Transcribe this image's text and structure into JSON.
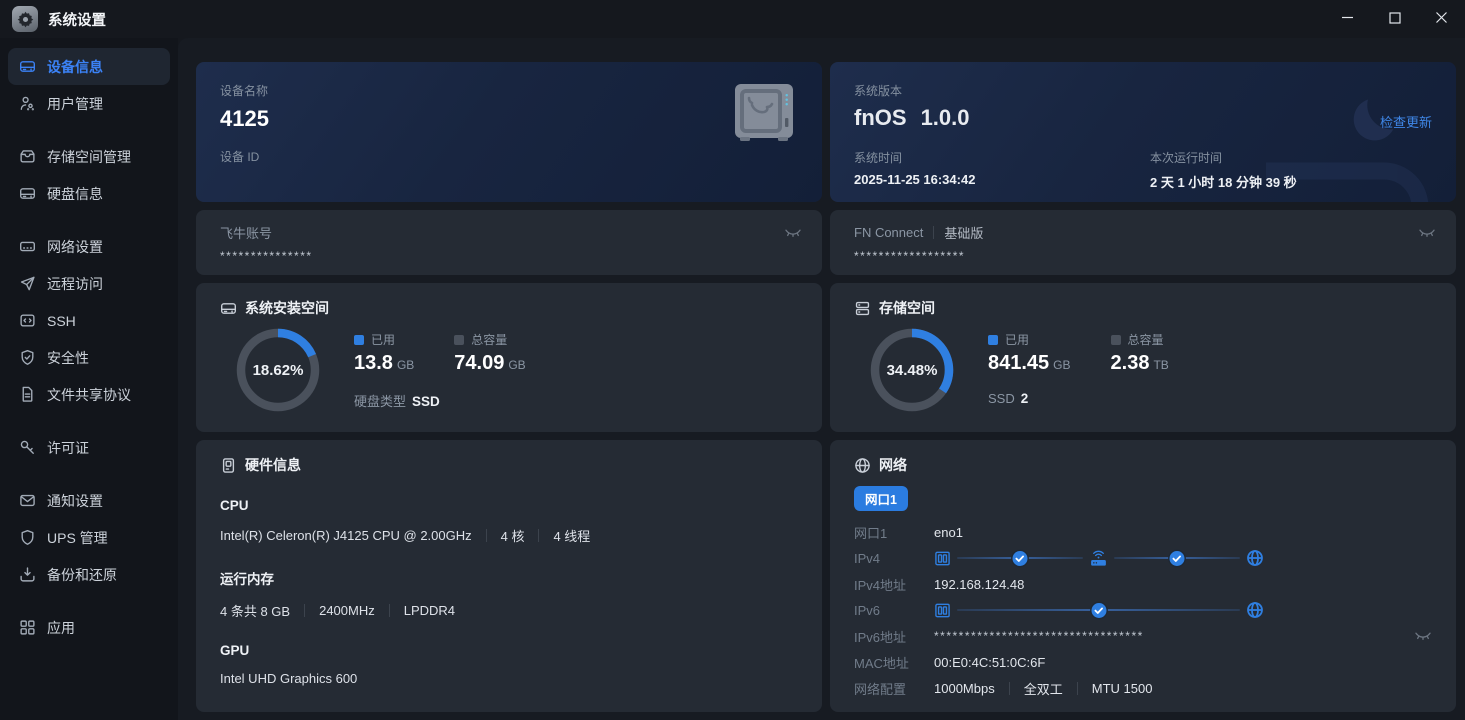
{
  "titlebar": {
    "app_title": "系统设置"
  },
  "sidebar": {
    "groups": [
      {
        "items": [
          {
            "id": "device-info",
            "label": "设备信息",
            "icon": "drive-icon",
            "active": true
          },
          {
            "id": "user-management",
            "label": "用户管理",
            "icon": "users-icon",
            "active": false
          }
        ]
      },
      {
        "items": [
          {
            "id": "storage-management",
            "label": "存储空间管理",
            "icon": "storage-box-icon",
            "active": false
          },
          {
            "id": "disk-info",
            "label": "硬盘信息",
            "icon": "disk-icon",
            "active": false
          }
        ]
      },
      {
        "items": [
          {
            "id": "network-settings",
            "label": "网络设置",
            "icon": "network-adapter-icon",
            "active": false
          },
          {
            "id": "remote-access",
            "label": "远程访问",
            "icon": "paper-plane-icon",
            "active": false
          },
          {
            "id": "ssh",
            "label": "SSH",
            "icon": "terminal-icon",
            "active": false
          },
          {
            "id": "security",
            "label": "安全性",
            "icon": "shield-check-icon",
            "active": false
          },
          {
            "id": "file-sharing",
            "label": "文件共享协议",
            "icon": "document-icon",
            "active": false
          }
        ]
      },
      {
        "items": [
          {
            "id": "license",
            "label": "许可证",
            "icon": "key-icon",
            "active": false
          }
        ]
      },
      {
        "items": [
          {
            "id": "notifications",
            "label": "通知设置",
            "icon": "mail-icon",
            "active": false
          },
          {
            "id": "ups",
            "label": "UPS 管理",
            "icon": "shield-icon",
            "active": false
          },
          {
            "id": "backup-restore",
            "label": "备份和还原",
            "icon": "download-tray-icon",
            "active": false
          }
        ]
      },
      {
        "items": [
          {
            "id": "apps",
            "label": "应用",
            "icon": "grid-icon",
            "active": false
          }
        ]
      }
    ]
  },
  "device_card": {
    "name_label": "设备名称",
    "name_value": "4125",
    "id_label": "设备 ID",
    "id_value": ""
  },
  "version_card": {
    "label": "系统版本",
    "os_name": "fnOS",
    "os_version": "1.0.0",
    "check_update": "检查更新",
    "time_label": "系统时间",
    "time_value": "2025-11-25 16:34:42",
    "uptime_label": "本次运行时间",
    "uptime_value": "2 天 1 小时 18 分钟 39 秒"
  },
  "account_card": {
    "label": "飞牛账号",
    "value": "***************"
  },
  "connect_card": {
    "label": "FN Connect",
    "badge": "基础版",
    "value": "******************"
  },
  "chart_data": [
    {
      "type": "donut",
      "title": "系统安装空间",
      "percent": 18.62,
      "center_label": "18.62%",
      "series": [
        {
          "name": "已用",
          "value": "13.8",
          "unit": "GB",
          "color": "#2f7fe1"
        },
        {
          "name": "总容量",
          "value": "74.09",
          "unit": "GB",
          "color": "#4a515c"
        }
      ],
      "footer_label": "硬盘类型",
      "footer_value": "SSD"
    },
    {
      "type": "donut",
      "title": "存储空间",
      "percent": 34.48,
      "center_label": "34.48%",
      "series": [
        {
          "name": "已用",
          "value": "841.45",
          "unit": "GB",
          "color": "#2f7fe1"
        },
        {
          "name": "总容量",
          "value": "2.38",
          "unit": "TB",
          "color": "#4a515c"
        }
      ],
      "footer_label": "SSD",
      "footer_value": "2"
    }
  ],
  "hardware_card": {
    "title": "硬件信息",
    "sections": [
      {
        "heading": "CPU",
        "parts": [
          "Intel(R) Celeron(R) J4125 CPU @ 2.00GHz",
          "4 核",
          "4 线程"
        ]
      },
      {
        "heading": "运行内存",
        "parts": [
          "4 条共 8 GB",
          "2400MHz",
          "LPDDR4"
        ]
      },
      {
        "heading": "GPU",
        "parts": [
          "Intel UHD Graphics 600"
        ]
      }
    ]
  },
  "network_card": {
    "title": "网络",
    "port_tab": "网口1",
    "rows": {
      "port": {
        "label": "网口1",
        "value": "eno1"
      },
      "ipv4": {
        "label": "IPv4"
      },
      "ipv4_addr": {
        "label": "IPv4地址",
        "value": "192.168.124.48"
      },
      "ipv6": {
        "label": "IPv6"
      },
      "ipv6_addr": {
        "label": "IPv6地址",
        "value": "**********************************"
      },
      "mac": {
        "label": "MAC地址",
        "value": "00:E0:4C:51:0C:6F"
      },
      "config": {
        "label": "网络配置",
        "parts": [
          "1000Mbps",
          "全双工",
          "MTU 1500"
        ]
      }
    }
  }
}
